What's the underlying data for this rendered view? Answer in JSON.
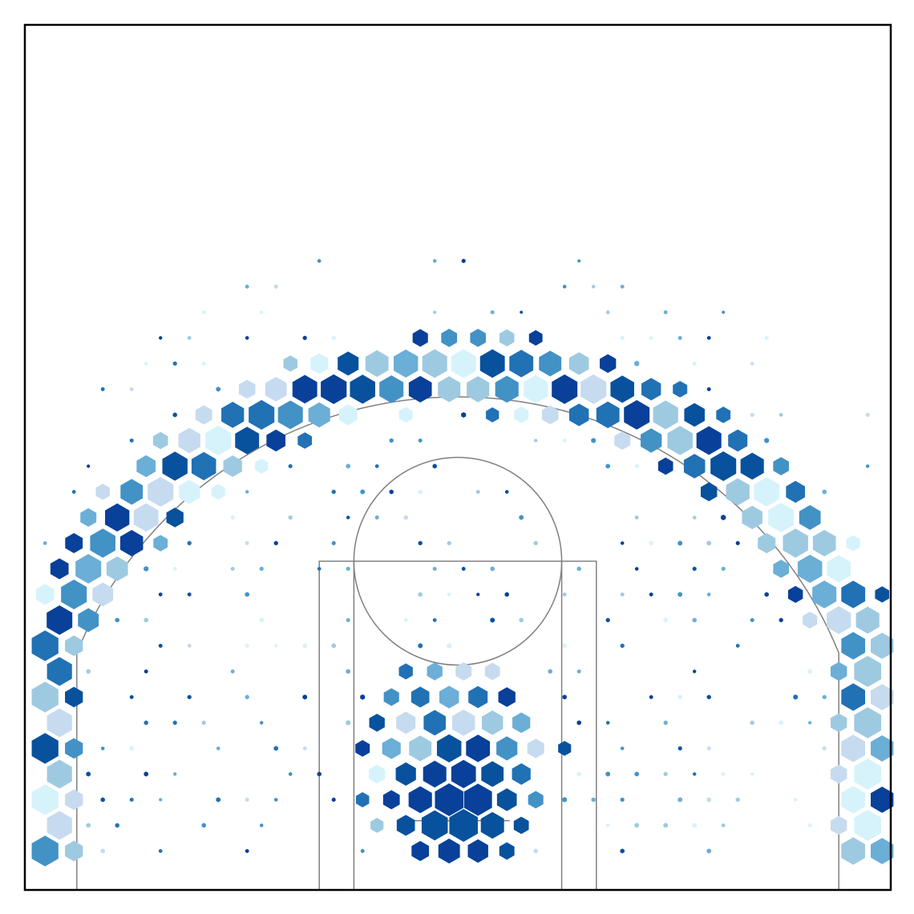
{
  "chart_data": {
    "type": "hexbin",
    "title": "",
    "xlabel": "",
    "ylabel": "",
    "xlim": [
      -250,
      250
    ],
    "ylim": [
      -47.5,
      452.5
    ],
    "grid": false,
    "legend": "none",
    "colormap": [
      "#d6f3fb",
      "#c6dbef",
      "#9ecae1",
      "#6baed6",
      "#4292c6",
      "#2171b5",
      "#08519c",
      "#08409a"
    ],
    "hex_size_scale": "frequency",
    "hex_color_scale": "efficiency",
    "court": {
      "hoop_center": [
        0,
        0
      ],
      "backboard": {
        "x": [
          -30,
          30
        ],
        "y": -7.5
      },
      "paint_outer": {
        "x": [
          -80,
          80
        ],
        "y_top": 142.5
      },
      "paint_inner": {
        "x": [
          -60,
          60
        ],
        "y_top": 142.5
      },
      "free_throw_circle": {
        "center": [
          0,
          142.5
        ],
        "radius": 60
      },
      "corner_three_x": [
        -220,
        220
      ],
      "corner_three_y_top": 92.5,
      "three_point_radius": 237.5
    },
    "clusters": [
      {
        "zone": "restricted-area",
        "center": [
          0,
          10
        ],
        "freq": "very-high",
        "color": "dark"
      },
      {
        "zone": "paint-left",
        "center": [
          -40,
          40
        ],
        "freq": "high",
        "color": "mixed"
      },
      {
        "zone": "paint-right",
        "center": [
          40,
          40
        ],
        "freq": "high",
        "color": "mixed"
      },
      {
        "zone": "left-corner-three",
        "center": [
          -235,
          20
        ],
        "freq": "high",
        "color": "mixed"
      },
      {
        "zone": "right-corner-three",
        "center": [
          235,
          40
        ],
        "freq": "high",
        "color": "mixed"
      },
      {
        "zone": "left-wing-three",
        "center": [
          -185,
          175
        ],
        "freq": "high",
        "color": "mixed"
      },
      {
        "zone": "right-wing-three",
        "center": [
          185,
          175
        ],
        "freq": "high",
        "color": "mixed"
      },
      {
        "zone": "top-of-key-three",
        "center": [
          0,
          300
        ],
        "freq": "high",
        "color": "mixed"
      }
    ]
  }
}
